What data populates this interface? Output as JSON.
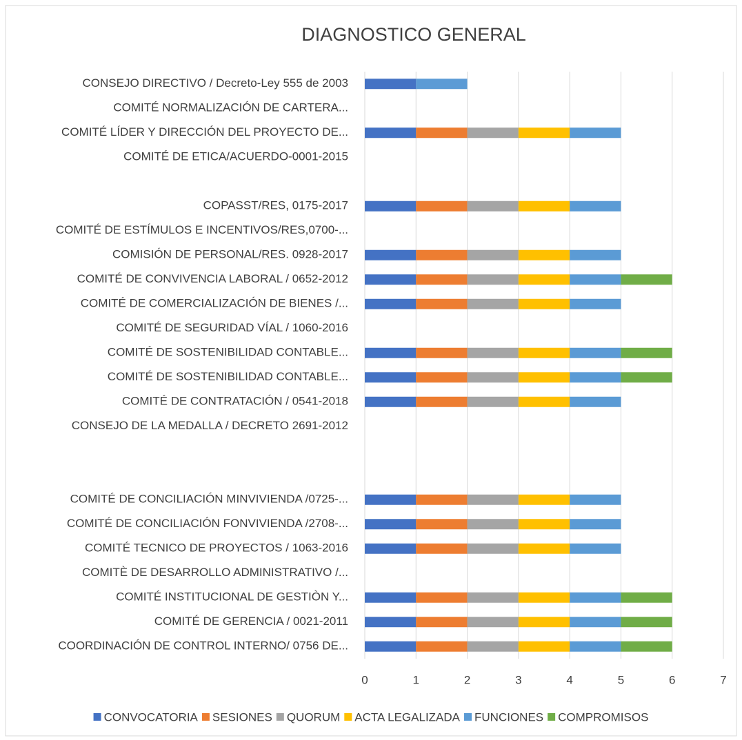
{
  "chart_data": {
    "type": "stacked_bar_horizontal",
    "title": "DIAGNOSTICO GENERAL",
    "categories": [
      "CONSEJO DIRECTIVO / Decreto-Ley 555 de 2003",
      "COMITÉ NORMALIZACIÓN DE CARTERA...",
      "COMITÉ LÍDER Y DIRECCIÓN DEL PROYECTO DE...",
      "COMITÉ DE ETICA/ACUERDO-0001-2015",
      null,
      "COPASST/RES, 0175-2017",
      "COMITÉ DE ESTÍMULOS E INCENTIVOS/RES,0700-...",
      "COMISIÓN DE PERSONAL/RES. 0928-2017",
      "COMITÉ DE CONVIVENCIA LABORAL / 0652-2012",
      "COMITÉ DE COMERCIALIZACIÓN DE BIENES /...",
      "COMITÉ DE SEGURIDAD VÍAL / 1060-2016",
      "COMITÉ DE SOSTENIBILIDAD CONTABLE...",
      "COMITÉ DE SOSTENIBILIDAD CONTABLE...",
      "COMITÉ DE CONTRATACIÓN / 0541-2018",
      "CONSEJO DE LA MEDALLA / DECRETO 2691-2012",
      null,
      null,
      "COMITÉ DE CONCILIACIÓN MINVIVIENDA /0725-...",
      "COMITÉ DE CONCILIACIÓN FONVIVIENDA /2708-...",
      "COMITÉ TECNICO DE PROYECTOS / 1063-2016",
      "COMITÈ DE DESARROLLO ADMINISTRATIVO /...",
      "COMITÉ INSTITUCIONAL DE GESTIÒN Y...",
      "COMITÉ DE GERENCIA / 0021-2011",
      "COORDINACIÓN DE CONTROL INTERNO/ 0756 DE..."
    ],
    "series": [
      {
        "name": "CONVOCATORIA",
        "color": "#4472c4",
        "values": [
          1,
          0,
          1,
          0,
          0,
          1,
          0,
          1,
          1,
          1,
          0,
          1,
          1,
          1,
          0,
          0,
          0,
          1,
          1,
          1,
          0,
          1,
          1,
          1
        ]
      },
      {
        "name": "SESIONES",
        "color": "#ed7d31",
        "values": [
          0,
          0,
          1,
          0,
          0,
          1,
          0,
          1,
          1,
          1,
          0,
          1,
          1,
          1,
          0,
          0,
          0,
          1,
          1,
          1,
          0,
          1,
          1,
          1
        ]
      },
      {
        "name": "QUORUM",
        "color": "#a5a5a5",
        "values": [
          0,
          0,
          1,
          0,
          0,
          1,
          0,
          1,
          1,
          1,
          0,
          1,
          1,
          1,
          0,
          0,
          0,
          1,
          1,
          1,
          0,
          1,
          1,
          1
        ]
      },
      {
        "name": "ACTA LEGALIZADA",
        "color": "#ffc000",
        "values": [
          0,
          0,
          1,
          0,
          0,
          1,
          0,
          1,
          1,
          1,
          0,
          1,
          1,
          1,
          0,
          0,
          0,
          1,
          1,
          1,
          0,
          1,
          1,
          1
        ]
      },
      {
        "name": "FUNCIONES",
        "color": "#5b9bd5",
        "values": [
          1,
          0,
          1,
          0,
          0,
          1,
          0,
          1,
          1,
          1,
          0,
          1,
          1,
          1,
          0,
          0,
          0,
          1,
          1,
          1,
          0,
          1,
          1,
          1
        ]
      },
      {
        "name": "COMPROMISOS",
        "color": "#70ad47",
        "values": [
          0,
          0,
          0,
          0,
          0,
          0,
          0,
          0,
          1,
          0,
          0,
          1,
          1,
          0,
          0,
          0,
          0,
          0,
          0,
          0,
          0,
          1,
          1,
          1
        ]
      }
    ],
    "xlim": [
      0,
      7
    ],
    "xticks": [
      0,
      1,
      2,
      3,
      4,
      5,
      6,
      7
    ],
    "grid": true,
    "legend": "bottom"
  }
}
